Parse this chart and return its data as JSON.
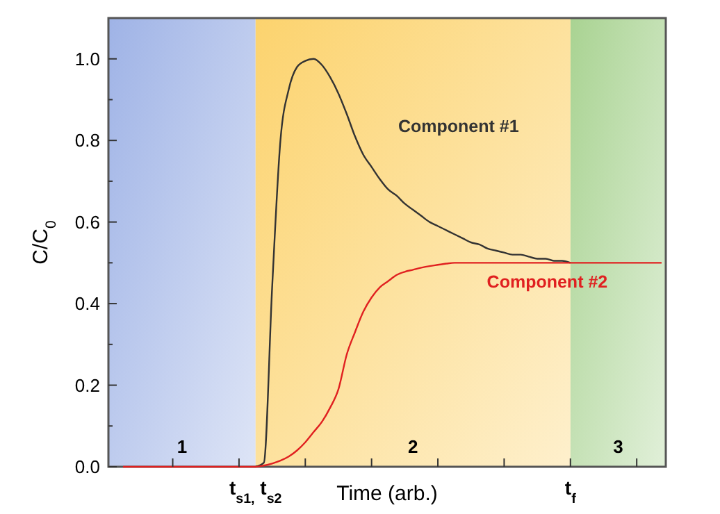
{
  "chart_data": {
    "type": "line",
    "xlabel": "Time (arb.)",
    "ylabel": "C/C$_{0}$",
    "categories": [
      null,
      null,
      null,
      null,
      null,
      null,
      null,
      null,
      null,
      null,
      null,
      null,
      null,
      null,
      null,
      null,
      "t$_{s1,}$ t$_{s2}$",
      null,
      null,
      null,
      null,
      null,
      null,
      null,
      null,
      null,
      null,
      null,
      null,
      null,
      null,
      null,
      null,
      null,
      null,
      null,
      null,
      null,
      null,
      null,
      null,
      null,
      null,
      null,
      null,
      null,
      null,
      null,
      null,
      null,
      null,
      null,
      null,
      null,
      "t$_{f}$",
      null,
      null,
      null,
      null,
      null,
      null,
      null,
      null,
      null,
      null,
      null
    ],
    "ylim": [
      0,
      1.1
    ],
    "yticks": [
      {
        "value": 0,
        "label": "0.0"
      },
      {
        "value": 0.1,
        "label": null
      },
      {
        "value": 0.2,
        "label": "0.2"
      },
      {
        "value": 0.3,
        "label": null
      },
      {
        "value": 0.4,
        "label": "0.4"
      },
      {
        "value": 0.5,
        "label": null
      },
      {
        "value": 0.6,
        "label": "0.6"
      },
      {
        "value": 0.7,
        "label": null
      },
      {
        "value": 0.8,
        "label": "0.8"
      },
      {
        "value": 0.9,
        "label": null
      },
      {
        "value": 1.0,
        "label": "1.0"
      }
    ],
    "bands": [
      {
        "axis": "x",
        "from": "t$_{s1,}$ t$_{s2}$",
        "to": "t$_{f}$",
        "label": "2",
        "color": "#fcd36e"
      }
    ],
    "annotations": [
      "1",
      "3"
    ],
    "series": [
      {
        "name": "Component #1",
        "color": "#333333",
        "values": [
          null,
          null,
          null,
          null,
          null,
          null,
          null,
          null,
          null,
          null,
          null,
          null,
          null,
          null,
          null,
          null,
          0,
          0.01,
          0.44,
          0.8,
          0.925,
          0.98,
          0.995,
          1.0,
          0.985,
          0.955,
          0.915,
          0.865,
          0.81,
          0.765,
          0.735,
          0.705,
          0.68,
          0.665,
          0.645,
          0.63,
          0.615,
          0.6,
          0.59,
          0.58,
          0.57,
          0.56,
          0.55,
          0.545,
          0.535,
          0.53,
          0.525,
          0.52,
          0.52,
          0.515,
          0.51,
          0.51,
          0.505,
          0.505,
          0.5,
          null,
          null,
          null,
          null,
          null,
          null,
          null,
          null,
          null,
          null,
          null
        ]
      },
      {
        "name": "Component #2",
        "color": "#e02020",
        "values": [
          0,
          0,
          0,
          0,
          0,
          0,
          0,
          0,
          0,
          0,
          0,
          0,
          0,
          0,
          0,
          0,
          0,
          0.003,
          0.008,
          0.015,
          0.025,
          0.04,
          0.06,
          0.085,
          0.11,
          0.145,
          0.19,
          0.275,
          0.33,
          0.38,
          0.415,
          0.44,
          0.455,
          0.47,
          0.478,
          0.483,
          0.488,
          0.492,
          0.495,
          0.498,
          0.5,
          0.5,
          0.5,
          0.5,
          0.5,
          0.5,
          0.5,
          0.5,
          0.5,
          0.5,
          0.5,
          0.5,
          0.5,
          0.5,
          0.5,
          0.5,
          0.5,
          0.5,
          0.5,
          0.5,
          0.5,
          0.5,
          0.5,
          0.5,
          0.5,
          0.5
        ]
      }
    ]
  }
}
